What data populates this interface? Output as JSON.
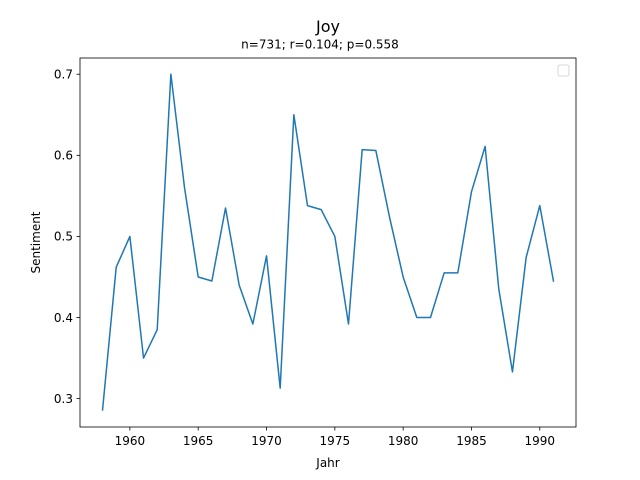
{
  "chart_data": {
    "type": "line",
    "title": "Joy",
    "subtitle": "n=731; r=0.104; p=0.558",
    "xlabel": "Jahr",
    "ylabel": "Sentiment",
    "xlim": [
      1956.35,
      1992.65
    ],
    "ylim": [
      0.265,
      0.72
    ],
    "xticks": [
      1960,
      1965,
      1970,
      1975,
      1980,
      1985,
      1990
    ],
    "yticks": [
      0.3,
      0.4,
      0.5,
      0.6,
      0.7
    ],
    "xtick_labels": [
      "1960",
      "1965",
      "1970",
      "1975",
      "1980",
      "1985",
      "1990"
    ],
    "ytick_labels": [
      "0.3",
      "0.4",
      "0.5",
      "0.6",
      "0.7"
    ],
    "grid": false,
    "legend": "top-right",
    "series": [
      {
        "color": "#1f77b4",
        "x": [
          1958,
          1959,
          1960,
          1961,
          1962,
          1963,
          1964,
          1965,
          1966,
          1967,
          1968,
          1969,
          1970,
          1971,
          1972,
          1973,
          1974,
          1975,
          1976,
          1977,
          1978,
          1979,
          1980,
          1981,
          1982,
          1983,
          1984,
          1985,
          1986,
          1987,
          1988,
          1989,
          1990,
          1991
        ],
        "y": [
          0.286,
          0.462,
          0.5,
          0.35,
          0.385,
          0.7,
          0.56,
          0.45,
          0.445,
          0.535,
          0.44,
          0.392,
          0.476,
          0.313,
          0.65,
          0.538,
          0.533,
          0.5,
          0.392,
          0.607,
          0.606,
          0.524,
          0.45,
          0.4,
          0.4,
          0.455,
          0.455,
          0.555,
          0.611,
          0.435,
          0.333,
          0.474,
          0.538,
          0.445
        ]
      }
    ]
  }
}
